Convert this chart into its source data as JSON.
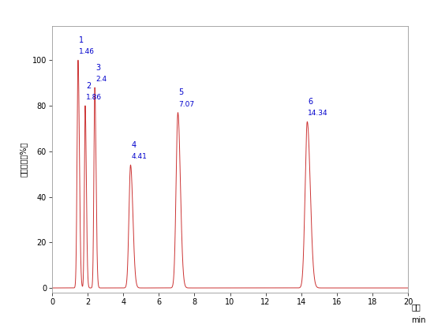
{
  "title": "",
  "xlabel_chinese": "时间",
  "xlabel_unit": "min",
  "ylabel_chinese": "信号强度（%）",
  "xlim": [
    0,
    20
  ],
  "ylim": [
    -2,
    115
  ],
  "xticks": [
    0,
    2,
    4,
    6,
    8,
    10,
    12,
    14,
    16,
    18,
    20
  ],
  "yticks": [
    0,
    20,
    40,
    60,
    80,
    100
  ],
  "peaks": [
    {
      "num": "1",
      "time": 1.46,
      "height": 100.0,
      "sigma_l": 0.055,
      "sigma_r": 0.075
    },
    {
      "num": "2",
      "time": 1.86,
      "height": 80.0,
      "sigma_l": 0.045,
      "sigma_r": 0.065
    },
    {
      "num": "3",
      "time": 2.4,
      "height": 88.0,
      "sigma_l": 0.05,
      "sigma_r": 0.07
    },
    {
      "num": "4",
      "time": 4.41,
      "height": 54.0,
      "sigma_l": 0.09,
      "sigma_r": 0.13
    },
    {
      "num": "5",
      "time": 7.07,
      "height": 77.0,
      "sigma_l": 0.1,
      "sigma_r": 0.14
    },
    {
      "num": "6",
      "time": 14.34,
      "height": 73.0,
      "sigma_l": 0.12,
      "sigma_r": 0.17
    }
  ],
  "line_color": "#cc3333",
  "label_color": "#0000cc",
  "background_color": "#ffffff"
}
